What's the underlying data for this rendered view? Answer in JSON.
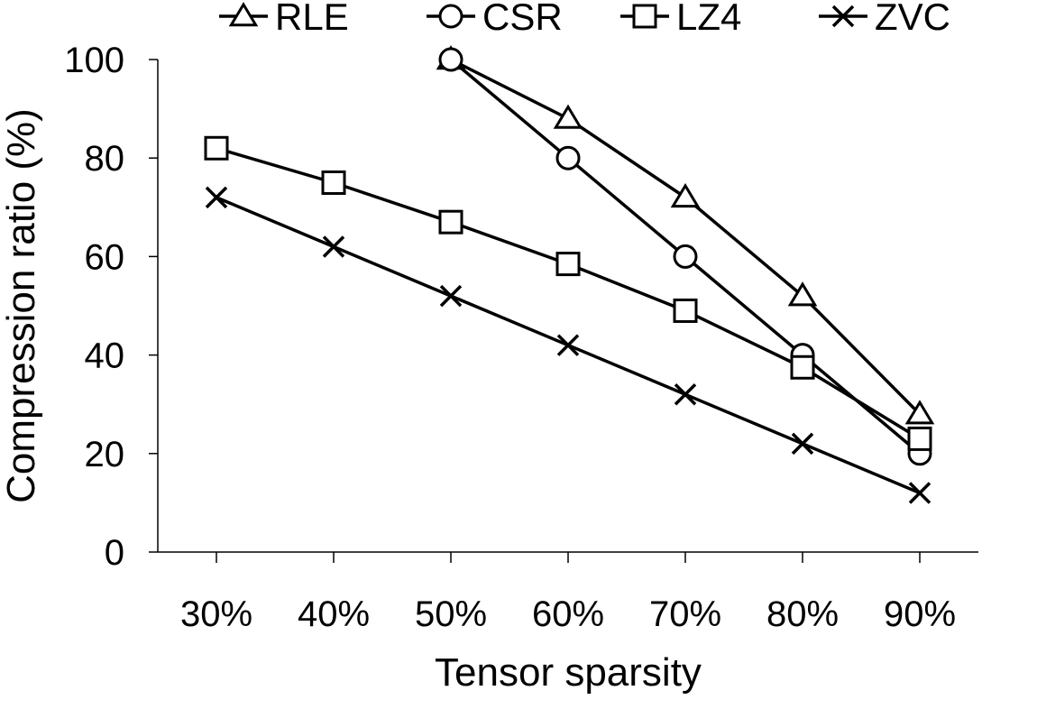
{
  "chart_data": {
    "type": "line",
    "xlabel": "Tensor sparsity",
    "ylabel": "Compression ratio (%)",
    "categories": [
      "30%",
      "40%",
      "50%",
      "60%",
      "70%",
      "80%",
      "90%"
    ],
    "ylim": [
      0,
      100
    ],
    "yticks": [
      0,
      20,
      40,
      60,
      80,
      100
    ],
    "grid": false,
    "legend_position": "top",
    "series": [
      {
        "name": "RLE",
        "marker": "triangle",
        "values": [
          null,
          null,
          100,
          88,
          72,
          52,
          28
        ]
      },
      {
        "name": "CSR",
        "marker": "circle",
        "values": [
          null,
          null,
          100,
          80,
          60,
          40,
          20
        ]
      },
      {
        "name": "LZ4",
        "marker": "square",
        "values": [
          82,
          75,
          67,
          58.5,
          49,
          37.5,
          23
        ]
      },
      {
        "name": "ZVC",
        "marker": "x",
        "values": [
          72,
          62,
          52,
          42,
          32,
          22,
          12
        ]
      }
    ]
  }
}
